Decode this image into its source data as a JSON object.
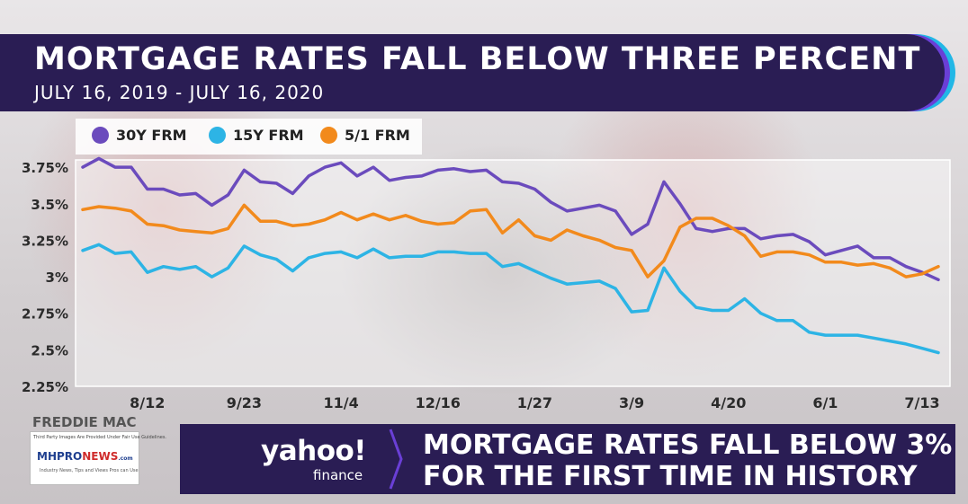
{
  "header": {
    "title": "MORTGAGE RATES FALL BELOW THREE PERCENT",
    "subtitle": "JULY 16, 2019 - JULY 16, 2020"
  },
  "legend": {
    "items": [
      {
        "label": "30Y FRM",
        "color": "#6b4bbd"
      },
      {
        "label": "15Y FRM",
        "color": "#2db4e5"
      },
      {
        "label": "5/1 FRM",
        "color": "#f28a1c"
      }
    ]
  },
  "source": "FREDDIE MAC",
  "watermark": {
    "note": "Third Party Images Are Provided Under Fair Use Guidelines.",
    "logo_left": "MHPRO",
    "logo_right": "NEWS",
    "logo_suffix": ".com",
    "tagline": "Industry News, Tips and Views Pros can Use"
  },
  "banner": {
    "brand": "yahoo!",
    "brand_sub": "finance",
    "headline_line1": "MORTGAGE RATES FALL BELOW 3%",
    "headline_line2": "FOR THE FIRST TIME IN HISTORY"
  },
  "chart_data": {
    "type": "line",
    "title": "MORTGAGE RATES FALL BELOW THREE PERCENT",
    "subtitle": "JULY 16, 2019 - JULY 16, 2020",
    "ylim": [
      2.25,
      3.8
    ],
    "yticks": [
      {
        "value": 3.75,
        "label": "3.75%"
      },
      {
        "value": 3.5,
        "label": "3.5%"
      },
      {
        "value": 3.25,
        "label": "3.25%"
      },
      {
        "value": 3.0,
        "label": "3%"
      },
      {
        "value": 2.75,
        "label": "2.75%"
      },
      {
        "value": 2.5,
        "label": "2.5%"
      },
      {
        "value": 2.25,
        "label": "2.25%"
      }
    ],
    "xticks": [
      {
        "index": 4,
        "label": "8/12"
      },
      {
        "index": 10,
        "label": "9/23"
      },
      {
        "index": 16,
        "label": "11/4"
      },
      {
        "index": 22,
        "label": "12/16"
      },
      {
        "index": 28,
        "label": "1/27"
      },
      {
        "index": 34,
        "label": "3/9"
      },
      {
        "index": 40,
        "label": "4/20"
      },
      {
        "index": 46,
        "label": "6/1"
      },
      {
        "index": 52,
        "label": "7/13"
      }
    ],
    "grid": false,
    "legend_position": "top-left",
    "series": [
      {
        "name": "30Y FRM",
        "color": "#6b4bbd",
        "values": [
          3.75,
          3.81,
          3.75,
          3.75,
          3.6,
          3.6,
          3.56,
          3.57,
          3.49,
          3.56,
          3.73,
          3.65,
          3.64,
          3.57,
          3.69,
          3.75,
          3.78,
          3.69,
          3.75,
          3.66,
          3.68,
          3.69,
          3.73,
          3.74,
          3.72,
          3.73,
          3.65,
          3.64,
          3.6,
          3.51,
          3.45,
          3.47,
          3.49,
          3.45,
          3.29,
          3.36,
          3.65,
          3.5,
          3.33,
          3.31,
          3.33,
          3.33,
          3.26,
          3.28,
          3.29,
          3.24,
          3.15,
          3.18,
          3.21,
          3.13,
          3.13,
          3.07,
          3.03,
          2.98
        ]
      },
      {
        "name": "15Y FRM",
        "color": "#2db4e5",
        "values": [
          3.18,
          3.22,
          3.16,
          3.17,
          3.03,
          3.07,
          3.05,
          3.07,
          3.0,
          3.06,
          3.21,
          3.15,
          3.12,
          3.04,
          3.13,
          3.16,
          3.17,
          3.13,
          3.19,
          3.13,
          3.14,
          3.14,
          3.17,
          3.17,
          3.16,
          3.16,
          3.07,
          3.09,
          3.04,
          2.99,
          2.95,
          2.96,
          2.97,
          2.92,
          2.76,
          2.77,
          3.06,
          2.9,
          2.79,
          2.77,
          2.77,
          2.85,
          2.75,
          2.7,
          2.7,
          2.62,
          2.6,
          2.6,
          2.6,
          2.58,
          2.56,
          2.54,
          2.51,
          2.48
        ]
      },
      {
        "name": "5/1 FRM",
        "color": "#f28a1c",
        "values": [
          3.46,
          3.48,
          3.47,
          3.45,
          3.36,
          3.35,
          3.32,
          3.31,
          3.3,
          3.33,
          3.49,
          3.38,
          3.38,
          3.35,
          3.36,
          3.39,
          3.44,
          3.39,
          3.43,
          3.39,
          3.42,
          3.38,
          3.36,
          3.37,
          3.45,
          3.46,
          3.3,
          3.39,
          3.28,
          3.25,
          3.32,
          3.28,
          3.25,
          3.2,
          3.18,
          3.0,
          3.11,
          3.34,
          3.4,
          3.4,
          3.35,
          3.28,
          3.14,
          3.17,
          3.17,
          3.15,
          3.1,
          3.1,
          3.08,
          3.09,
          3.06,
          3.0,
          3.02,
          3.07
        ]
      }
    ]
  }
}
